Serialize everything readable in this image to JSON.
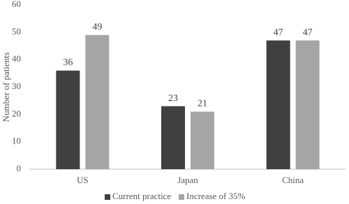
{
  "chart_data": {
    "type": "bar",
    "y_label": "Number of patients",
    "categories": [
      "US",
      "Japan",
      "China"
    ],
    "series": [
      {
        "name": "Current practice",
        "color": "#404040",
        "values": [
          36,
          23,
          47
        ]
      },
      {
        "name": "Increase of 35%",
        "color": "#a5a5a5",
        "values": [
          49,
          21,
          47
        ]
      }
    ],
    "ylim": [
      0,
      60
    ],
    "yticks": [
      0,
      10,
      20,
      30,
      40,
      50,
      60
    ],
    "grid": false,
    "legend": "bottom"
  }
}
